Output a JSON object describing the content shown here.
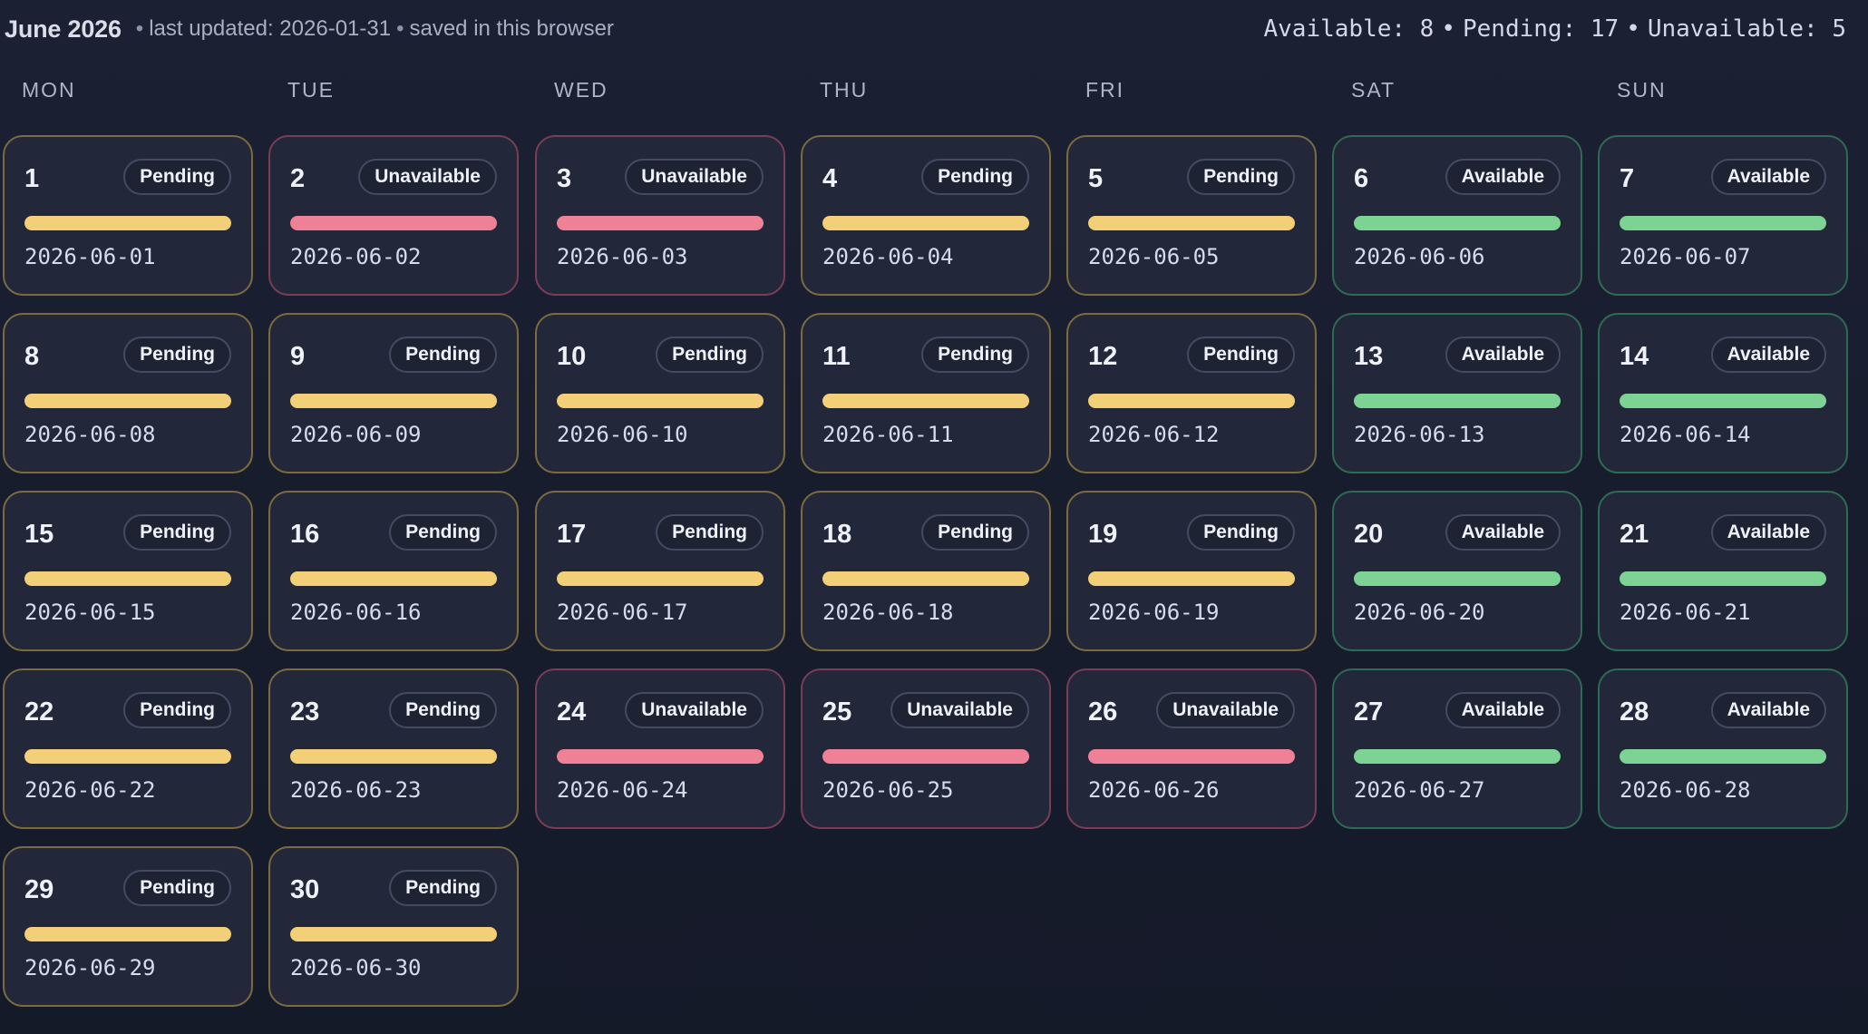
{
  "header": {
    "title": "June 2026",
    "last_updated": "last updated: 2026-01-31",
    "saved_note": "saved in this browser",
    "bullet": "•",
    "summary": {
      "available_label": "Available: 8",
      "pending_label": "Pending: 17",
      "unavailable_label": "Unavailable: 5"
    }
  },
  "weekdays": [
    "MON",
    "TUE",
    "WED",
    "THU",
    "FRI",
    "SAT",
    "SUN"
  ],
  "status_labels": {
    "pending": "Pending",
    "unavailable": "Unavailable",
    "available": "Available"
  },
  "colors": {
    "pending": "#f3cf77",
    "unavailable": "#ee8195",
    "available": "#7dd393",
    "background": "#1b2033",
    "card": "#22283a"
  },
  "days": [
    {
      "day": "1",
      "status": "pending",
      "label": "Pending",
      "date": "2026-06-01"
    },
    {
      "day": "2",
      "status": "unavailable",
      "label": "Unavailable",
      "date": "2026-06-02"
    },
    {
      "day": "3",
      "status": "unavailable",
      "label": "Unavailable",
      "date": "2026-06-03"
    },
    {
      "day": "4",
      "status": "pending",
      "label": "Pending",
      "date": "2026-06-04"
    },
    {
      "day": "5",
      "status": "pending",
      "label": "Pending",
      "date": "2026-06-05"
    },
    {
      "day": "6",
      "status": "available",
      "label": "Available",
      "date": "2026-06-06"
    },
    {
      "day": "7",
      "status": "available",
      "label": "Available",
      "date": "2026-06-07"
    },
    {
      "day": "8",
      "status": "pending",
      "label": "Pending",
      "date": "2026-06-08"
    },
    {
      "day": "9",
      "status": "pending",
      "label": "Pending",
      "date": "2026-06-09"
    },
    {
      "day": "10",
      "status": "pending",
      "label": "Pending",
      "date": "2026-06-10"
    },
    {
      "day": "11",
      "status": "pending",
      "label": "Pending",
      "date": "2026-06-11"
    },
    {
      "day": "12",
      "status": "pending",
      "label": "Pending",
      "date": "2026-06-12"
    },
    {
      "day": "13",
      "status": "available",
      "label": "Available",
      "date": "2026-06-13"
    },
    {
      "day": "14",
      "status": "available",
      "label": "Available",
      "date": "2026-06-14"
    },
    {
      "day": "15",
      "status": "pending",
      "label": "Pending",
      "date": "2026-06-15"
    },
    {
      "day": "16",
      "status": "pending",
      "label": "Pending",
      "date": "2026-06-16"
    },
    {
      "day": "17",
      "status": "pending",
      "label": "Pending",
      "date": "2026-06-17"
    },
    {
      "day": "18",
      "status": "pending",
      "label": "Pending",
      "date": "2026-06-18"
    },
    {
      "day": "19",
      "status": "pending",
      "label": "Pending",
      "date": "2026-06-19"
    },
    {
      "day": "20",
      "status": "available",
      "label": "Available",
      "date": "2026-06-20"
    },
    {
      "day": "21",
      "status": "available",
      "label": "Available",
      "date": "2026-06-21"
    },
    {
      "day": "22",
      "status": "pending",
      "label": "Pending",
      "date": "2026-06-22"
    },
    {
      "day": "23",
      "status": "pending",
      "label": "Pending",
      "date": "2026-06-23"
    },
    {
      "day": "24",
      "status": "unavailable",
      "label": "Unavailable",
      "date": "2026-06-24"
    },
    {
      "day": "25",
      "status": "unavailable",
      "label": "Unavailable",
      "date": "2026-06-25"
    },
    {
      "day": "26",
      "status": "unavailable",
      "label": "Unavailable",
      "date": "2026-06-26"
    },
    {
      "day": "27",
      "status": "available",
      "label": "Available",
      "date": "2026-06-27"
    },
    {
      "day": "28",
      "status": "available",
      "label": "Available",
      "date": "2026-06-28"
    },
    {
      "day": "29",
      "status": "pending",
      "label": "Pending",
      "date": "2026-06-29"
    },
    {
      "day": "30",
      "status": "pending",
      "label": "Pending",
      "date": "2026-06-30"
    }
  ]
}
